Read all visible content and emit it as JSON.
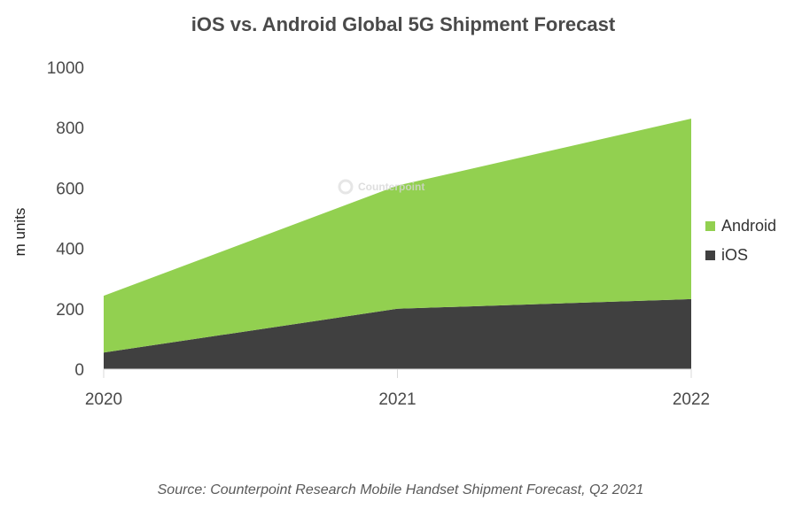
{
  "chart_data": {
    "type": "area",
    "stacked": true,
    "title": "iOS vs. Android Global 5G Shipment Forecast",
    "xlabel": "",
    "ylabel": "m units",
    "x": [
      "2020",
      "2021",
      "2022"
    ],
    "ylim": [
      0,
      1000
    ],
    "yticks": [
      "0",
      "200",
      "400",
      "600",
      "800",
      "1000"
    ],
    "grid": false,
    "legend_position": "right",
    "series": [
      {
        "name": "iOS",
        "values": [
          55,
          200,
          232
        ],
        "color": "#404040"
      },
      {
        "name": "Android",
        "values": [
          188,
          408,
          598
        ],
        "color": "#92d050"
      }
    ],
    "legend_order": [
      "Android",
      "iOS"
    ],
    "watermark": "Counterpoint",
    "source": "Source: Counterpoint Research Mobile Handset Shipment Forecast, Q2 2021"
  }
}
